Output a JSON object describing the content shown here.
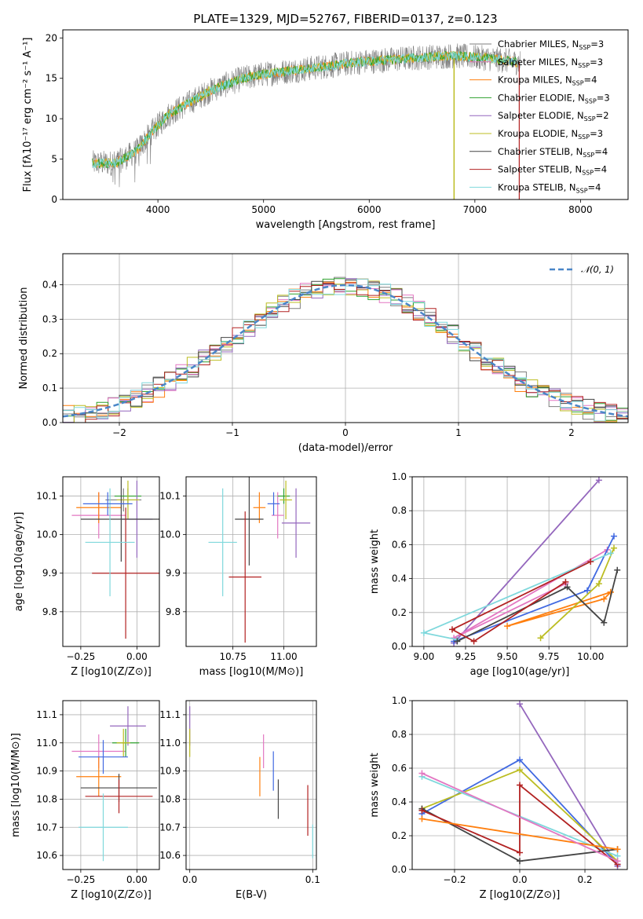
{
  "title": "PLATE=1329, MJD=52767, FIBERID=0137, z=0.123",
  "colors": {
    "Chabrier MILES": "#7f7f7f",
    "Salpeter MILES": "#e377c2",
    "Kroupa MILES": "#ff7f0e",
    "Chabrier ELODIE": "#2ca02c",
    "Salpeter ELODIE": "#9467bd",
    "Kroupa ELODIE": "#bcbd22",
    "Chabrier STELIB": "#444444",
    "Salpeter STELIB": "#b22222",
    "Kroupa STELIB": "#7fd8dc",
    "gauss": "#4a86c8",
    "blue": "#4169e1"
  },
  "chart_data": [
    {
      "type": "line",
      "title": "PLATE=1329, MJD=52767, FIBERID=0137, z=0.123",
      "xlabel": "wavelength [Angstrom, rest frame]",
      "ylabel": "Flux [fλ10⁻¹⁷ erg cm⁻² s⁻¹ A⁻¹]",
      "xlim": [
        3100,
        8450
      ],
      "ylim": [
        0,
        21
      ],
      "xticks": [
        4000,
        5000,
        6000,
        7000,
        8000
      ],
      "yticks": [
        0,
        5,
        10,
        15,
        20
      ],
      "grid": false,
      "legend_position": "right",
      "legend": [
        "Chabrier MILES, N_SSP=3",
        "Salpeter MILES, N_SSP=3",
        "Kroupa MILES, N_SSP=4",
        "Chabrier ELODIE, N_SSP=3",
        "Salpeter ELODIE, N_SSP=2",
        "Kroupa ELODIE, N_SSP=3",
        "Chabrier STELIB, N_SSP=4",
        "Salpeter STELIB, N_SSP=4",
        "Kroupa STELIB, N_SSP=4"
      ],
      "continuum": {
        "x": [
          3380,
          3600,
          3800,
          3950,
          4100,
          4300,
          4500,
          4800,
          5000,
          5300,
          5600,
          5900,
          6200,
          6500,
          6800,
          7100,
          7400
        ],
        "y": [
          4.5,
          4.5,
          6,
          8.5,
          10.5,
          12,
          13.5,
          15,
          15.5,
          16,
          16.5,
          17,
          17.3,
          17.6,
          17.8,
          17.5,
          17.0
        ]
      }
    },
    {
      "type": "line",
      "xlabel": "(data-model)/error",
      "ylabel": "Normed distribution",
      "xlim": [
        -2.5,
        2.5
      ],
      "ylim": [
        0,
        0.49
      ],
      "xticks": [
        -2,
        -1,
        0,
        1,
        2
      ],
      "yticks": [
        0.0,
        0.1,
        0.2,
        0.3,
        0.4
      ],
      "grid": true,
      "legend": [
        "𝒩(0, 1)"
      ],
      "legend_position": "top-right"
    },
    {
      "type": "scatter",
      "xlabel": "Z [log10(Z/Z⊙)]",
      "ylabel": "age  [log10(age/yr)]",
      "xlim": [
        -0.33,
        0.1
      ],
      "ylim": [
        9.71,
        10.15
      ],
      "xticks": [
        -0.25,
        0.0
      ],
      "yticks": [
        9.8,
        9.9,
        10.0,
        10.1
      ],
      "grid": true,
      "points": [
        {
          "model": "Chabrier MILES",
          "x": -0.06,
          "xerr": 0.08,
          "y": 10.09,
          "yerr": 0.03
        },
        {
          "model": "Salpeter MILES",
          "x": -0.17,
          "xerr": 0.12,
          "y": 10.05,
          "yerr": 0.06
        },
        {
          "model": "Kroupa MILES",
          "x": -0.17,
          "xerr": 0.1,
          "y": 10.07,
          "yerr": 0.04
        },
        {
          "model": "Chabrier ELODIE",
          "x": -0.04,
          "xerr": 0.06,
          "y": 10.1,
          "yerr": 0.02
        },
        {
          "model": "Salpeter ELODIE",
          "x": 0.0,
          "xerr": 0.07,
          "y": 10.04,
          "yerr": 0.1
        },
        {
          "model": "Kroupa ELODIE",
          "x": -0.04,
          "xerr": 0.05,
          "y": 10.09,
          "yerr": 0.05
        },
        {
          "model": "Chabrier STELIB",
          "x": -0.07,
          "xerr": 0.18,
          "y": 10.04,
          "yerr": 0.11
        },
        {
          "model": "Salpeter STELIB",
          "x": -0.05,
          "xerr": 0.15,
          "y": 9.9,
          "yerr": 0.17
        },
        {
          "model": "Kroupa STELIB",
          "x": -0.12,
          "xerr": 0.11,
          "y": 9.98,
          "yerr": 0.14
        },
        {
          "model": "blue",
          "x": -0.13,
          "xerr": 0.11,
          "y": 10.08,
          "yerr": 0.03
        }
      ]
    },
    {
      "type": "scatter",
      "xlabel": "mass [log10(M/M⊙)]",
      "ylabel": "",
      "xlim": [
        10.52,
        11.16
      ],
      "ylim": [
        9.71,
        10.15
      ],
      "xticks": [
        10.75,
        11.0
      ],
      "yticks": [
        9.8,
        9.9,
        10.0,
        10.1
      ],
      "grid": true,
      "points": [
        {
          "model": "Salpeter MILES",
          "x": 10.97,
          "xerr": 0.03,
          "y": 10.05,
          "yerr": 0.06
        },
        {
          "model": "Kroupa MILES",
          "x": 10.88,
          "xerr": 0.03,
          "y": 10.07,
          "yerr": 0.04
        },
        {
          "model": "Chabrier ELODIE",
          "x": 11.0,
          "xerr": 0.03,
          "y": 10.1,
          "yerr": 0.02
        },
        {
          "model": "Salpeter ELODIE",
          "x": 11.06,
          "xerr": 0.07,
          "y": 10.03,
          "yerr": 0.09
        },
        {
          "model": "Kroupa ELODIE",
          "x": 11.01,
          "xerr": 0.03,
          "y": 10.09,
          "yerr": 0.05
        },
        {
          "model": "Chabrier STELIB",
          "x": 10.83,
          "xerr": 0.07,
          "y": 10.04,
          "yerr": 0.12
        },
        {
          "model": "Salpeter STELIB",
          "x": 10.81,
          "xerr": 0.08,
          "y": 9.89,
          "yerr": 0.17
        },
        {
          "model": "Kroupa STELIB",
          "x": 10.7,
          "xerr": 0.07,
          "y": 9.98,
          "yerr": 0.14
        },
        {
          "model": "blue",
          "x": 10.95,
          "xerr": 0.03,
          "y": 10.08,
          "yerr": 0.03
        }
      ]
    },
    {
      "type": "line",
      "xlabel": "age  [log10(age/yr)]",
      "ylabel": "mass weight",
      "xlim": [
        8.93,
        10.22
      ],
      "ylim": [
        0,
        1
      ],
      "xticks": [
        9.0,
        9.25,
        9.5,
        9.75,
        10.0
      ],
      "yticks": [
        0.0,
        0.2,
        0.4,
        0.6,
        0.8,
        1.0
      ],
      "grid": true,
      "series": [
        {
          "model": "Salpeter ELODIE",
          "x": [
            10.05,
            9.18
          ],
          "y": [
            0.98,
            0.02
          ]
        },
        {
          "model": "Salpeter MILES",
          "x": [
            10.1,
            9.18,
            9.85
          ],
          "y": [
            0.57,
            0.05,
            0.37
          ]
        },
        {
          "model": "Kroupa MILES",
          "x": [
            10.12,
            10.08,
            9.5,
            10.12
          ],
          "y": [
            0.32,
            0.28,
            0.12,
            0.32
          ]
        },
        {
          "model": "blue",
          "x": [
            10.14,
            9.98,
            9.18
          ],
          "y": [
            0.65,
            0.33,
            0.03
          ]
        },
        {
          "model": "Kroupa ELODIE",
          "x": [
            10.14,
            10.05,
            9.7
          ],
          "y": [
            0.58,
            0.37,
            0.05
          ]
        },
        {
          "model": "Kroupa STELIB",
          "x": [
            10.12,
            9.0,
            9.2
          ],
          "y": [
            0.55,
            0.08,
            0.04
          ]
        },
        {
          "model": "Chabrier STELIB",
          "x": [
            10.16,
            10.08,
            9.86,
            9.2
          ],
          "y": [
            0.45,
            0.14,
            0.35,
            0.03
          ]
        },
        {
          "model": "Salpeter STELIB",
          "x": [
            10.0,
            9.17,
            9.3,
            9.85
          ],
          "y": [
            0.5,
            0.1,
            0.03,
            0.38
          ]
        }
      ]
    },
    {
      "type": "scatter",
      "xlabel": "Z [log10(Z/Z⊙)]",
      "ylabel": "mass [log10(M/M⊙)]",
      "xlim": [
        -0.33,
        0.1
      ],
      "ylim": [
        10.55,
        11.15
      ],
      "xticks": [
        -0.25,
        0.0
      ],
      "yticks": [
        10.6,
        10.7,
        10.8,
        10.9,
        11.0,
        11.1
      ],
      "grid": true,
      "points": [
        {
          "model": "Salpeter MILES",
          "x": -0.17,
          "xerr": 0.12,
          "y": 10.97,
          "yerr": 0.06
        },
        {
          "model": "Kroupa MILES",
          "x": -0.17,
          "xerr": 0.1,
          "y": 10.88,
          "yerr": 0.07
        },
        {
          "model": "Chabrier ELODIE",
          "x": -0.05,
          "xerr": 0.06,
          "y": 11.0,
          "yerr": 0.05
        },
        {
          "model": "Salpeter ELODIE",
          "x": -0.04,
          "xerr": 0.08,
          "y": 11.06,
          "yerr": 0.07
        },
        {
          "model": "Kroupa ELODIE",
          "x": -0.06,
          "xerr": 0.03,
          "y": 11.0,
          "yerr": 0.05
        },
        {
          "model": "Chabrier STELIB",
          "x": -0.08,
          "xerr": 0.17,
          "y": 10.84,
          "yerr": 0.05
        },
        {
          "model": "Salpeter STELIB",
          "x": -0.08,
          "xerr": 0.15,
          "y": 10.81,
          "yerr": 0.06
        },
        {
          "model": "Kroupa STELIB",
          "x": -0.15,
          "xerr": 0.11,
          "y": 10.7,
          "yerr": 0.12
        },
        {
          "model": "blue",
          "x": -0.15,
          "xerr": 0.11,
          "y": 10.95,
          "yerr": 0.06
        }
      ]
    },
    {
      "type": "scatter",
      "xlabel": "E(B-V)",
      "ylabel": "",
      "xlim": [
        -0.003,
        0.103
      ],
      "ylim": [
        10.55,
        11.15
      ],
      "xticks": [
        0.0,
        0.1
      ],
      "yticks": [
        10.6,
        10.7,
        10.8,
        10.9,
        11.0,
        11.1
      ],
      "grid": true,
      "points": [
        {
          "model": "Salpeter ELODIE",
          "x": 0.0,
          "y": 11.06,
          "yerr": 0.07
        },
        {
          "model": "Kroupa ELODIE",
          "x": 0.0,
          "y": 11.0,
          "yerr": 0.05
        },
        {
          "model": "Kroupa MILES",
          "x": 0.057,
          "y": 10.88,
          "yerr": 0.07
        },
        {
          "model": "Salpeter MILES",
          "x": 0.06,
          "y": 10.97,
          "yerr": 0.06
        },
        {
          "model": "blue",
          "x": 0.068,
          "y": 10.9,
          "yerr": 0.07
        },
        {
          "model": "Chabrier STELIB",
          "x": 0.072,
          "y": 10.8,
          "yerr": 0.07
        },
        {
          "model": "Salpeter STELIB",
          "x": 0.096,
          "y": 10.76,
          "yerr": 0.09
        },
        {
          "model": "Kroupa STELIB",
          "x": 0.1,
          "y": 10.65,
          "yerr": 0.06
        }
      ]
    },
    {
      "type": "line",
      "xlabel": "Z [log10(Z/Z⊙)]",
      "ylabel": "mass weight",
      "xlim": [
        -0.33,
        0.33
      ],
      "ylim": [
        0,
        1
      ],
      "xticks": [
        -0.2,
        0.0,
        0.2
      ],
      "yticks": [
        0.0,
        0.2,
        0.4,
        0.6,
        0.8,
        1.0
      ],
      "grid": true,
      "series": [
        {
          "model": "Salpeter ELODIE",
          "x": [
            0.0,
            0.3
          ],
          "y": [
            0.98,
            0.02
          ]
        },
        {
          "model": "blue",
          "x": [
            -0.3,
            0.0,
            0.3
          ],
          "y": [
            0.33,
            0.65,
            0.03
          ]
        },
        {
          "model": "Kroupa ELODIE",
          "x": [
            -0.3,
            0.0,
            0.3
          ],
          "y": [
            0.36,
            0.59,
            0.05
          ]
        },
        {
          "model": "Kroupa STELIB",
          "x": [
            -0.3,
            0.3
          ],
          "y": [
            0.55,
            0.08
          ]
        },
        {
          "model": "Chabrier STELIB",
          "x": [
            -0.3,
            0.0,
            0.3
          ],
          "y": [
            0.36,
            0.05,
            0.12
          ]
        },
        {
          "model": "Salpeter STELIB",
          "x": [
            -0.3,
            0.0,
            0.0,
            0.3
          ],
          "y": [
            0.35,
            0.1,
            0.5,
            0.03
          ]
        },
        {
          "model": "Kroupa MILES",
          "x": [
            -0.3,
            0.3
          ],
          "y": [
            0.3,
            0.12
          ]
        },
        {
          "model": "Salpeter MILES",
          "x": [
            -0.3,
            0.3
          ],
          "y": [
            0.57,
            0.05
          ]
        }
      ]
    }
  ]
}
